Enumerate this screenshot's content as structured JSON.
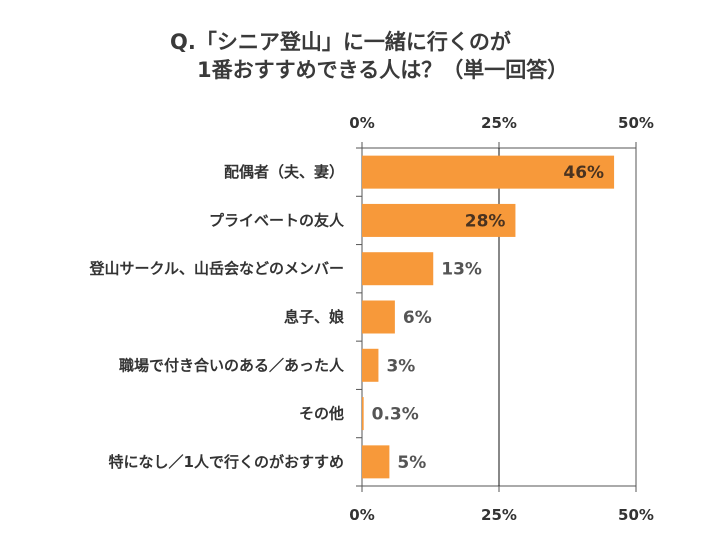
{
  "chart_data": {
    "type": "bar",
    "orientation": "horizontal",
    "title_lines": [
      "Q.「シニア登山」に一緒に行くのが",
      "1番おすすめできる人は？（単一回答）"
    ],
    "categories": [
      "配偶者（夫、妻）",
      "プライベートの友人",
      "登山サークル、山岳会などのメンバー",
      "息子、娘",
      "職場で付き合いのある／あった人",
      "その他",
      "特になし／1人で行くのがおすすめ"
    ],
    "values": [
      46,
      28,
      13,
      6,
      3,
      0.3,
      5
    ],
    "data_labels": [
      "46%",
      "28%",
      "13%",
      "6%",
      "3%",
      "0.3%",
      "5%"
    ],
    "xlim": [
      0,
      50
    ],
    "xticks": [
      "0%",
      "25%",
      "50%"
    ],
    "xtick_values": [
      0,
      25,
      50
    ],
    "grid": "vertical at 25%",
    "bar_color": "#f7993a",
    "xlabel": "",
    "ylabel": ""
  }
}
